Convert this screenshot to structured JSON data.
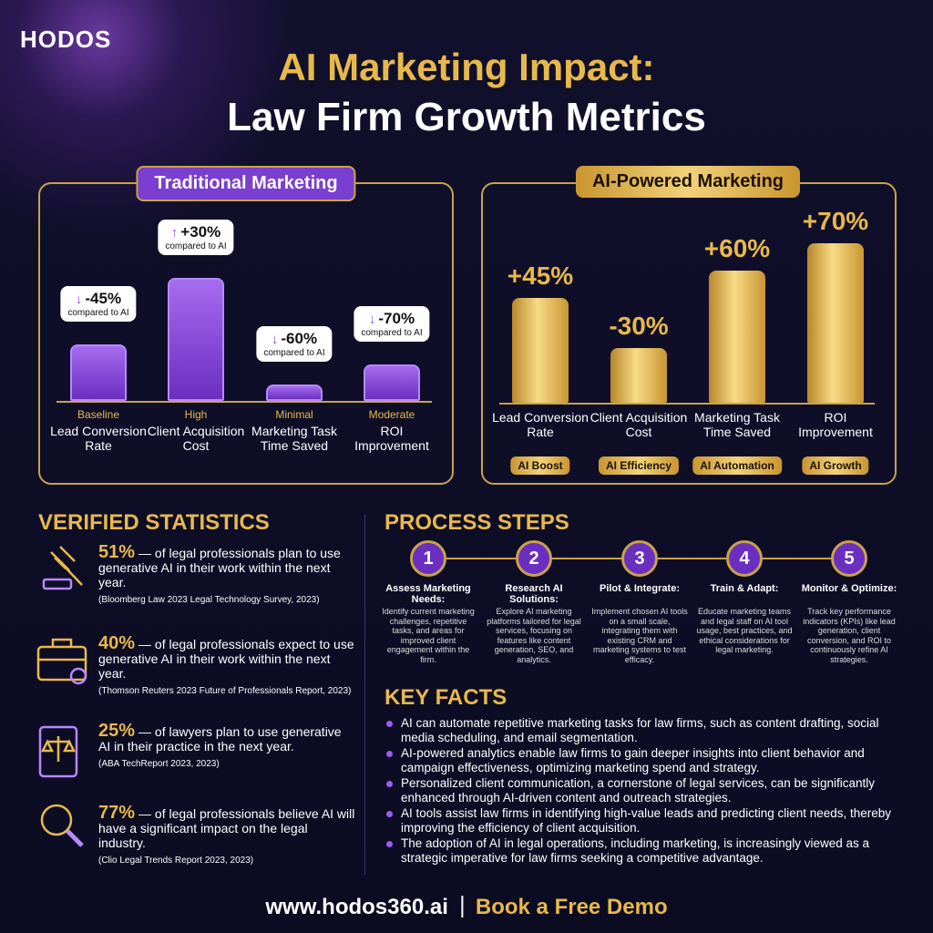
{
  "brand": "HODOS",
  "title": {
    "line1": "AI Marketing Impact:",
    "line2": "Law Firm Growth Metrics"
  },
  "traditional": {
    "heading": "Traditional Marketing",
    "items": [
      {
        "change": "-45%",
        "note": "compared to AI",
        "level": "Baseline",
        "label": "Lead Conversion Rate"
      },
      {
        "change": "+30%",
        "note": "compared to AI",
        "level": "High",
        "label": "Client Acquisition Cost"
      },
      {
        "change": "-60%",
        "note": "compared to AI",
        "level": "Minimal",
        "label": "Marketing Task Time Saved"
      },
      {
        "change": "-70%",
        "note": "compared to AI",
        "level": "Moderate",
        "label": "ROI Improvement"
      }
    ]
  },
  "ai": {
    "heading": "AI-Powered Marketing",
    "items": [
      {
        "change": "+45%",
        "label": "Lead Conversion Rate",
        "tag": "AI Boost"
      },
      {
        "change": "-30%",
        "label": "Client Acquisition Cost",
        "tag": "AI Efficiency"
      },
      {
        "change": "+60%",
        "label": "Marketing Task Time Saved",
        "tag": "AI Automation"
      },
      {
        "change": "+70%",
        "label": "ROI Improvement",
        "tag": "AI Growth"
      }
    ]
  },
  "verified": {
    "heading": "VERIFIED STATISTICS",
    "items": [
      {
        "stat": "51%",
        "text": "— of legal professionals plan to use generative AI in their work within the next year.",
        "source": "(Bloomberg Law 2023 Legal Technology Survey, 2023)"
      },
      {
        "stat": "40%",
        "text": "— of legal professionals expect to use generative AI in their work within the next year.",
        "source": "(Thomson Reuters 2023 Future of Professionals Report, 2023)"
      },
      {
        "stat": "25%",
        "text": "— of lawyers plan to use generative AI in their practice in the next year.",
        "source": "(ABA TechReport 2023, 2023)"
      },
      {
        "stat": "77%",
        "text": "— of legal professionals believe AI will have a significant impact on the legal industry.",
        "source": "(Clio Legal Trends Report 2023, 2023)"
      }
    ]
  },
  "process": {
    "heading": "PROCESS STEPS",
    "steps": [
      {
        "number": 1,
        "title": "Assess Marketing Needs:",
        "text": "Identify current marketing challenges, repetitive tasks, and areas for improved client engagement within the firm."
      },
      {
        "number": 2,
        "title": "Research AI Solutions:",
        "text": "Explore AI marketing platforms tailored for legal services, focusing on features like content generation, SEO, and analytics."
      },
      {
        "number": 3,
        "title": "Pilot & Integrate:",
        "text": "Implement chosen AI tools on a small scale, integrating them with existing CRM and marketing systems to test efficacy."
      },
      {
        "number": 4,
        "title": "Train & Adapt:",
        "text": "Educate marketing teams and legal staff on AI tool usage, best practices, and ethical considerations for legal marketing."
      },
      {
        "number": 5,
        "title": "Monitor & Optimize:",
        "text": "Track key performance indicators (KPIs) like lead generation, client conversion, and ROI to continuously refine AI strategies."
      }
    ]
  },
  "key_facts": {
    "heading": "KEY FACTS",
    "items": [
      "AI can automate repetitive marketing tasks for law firms, such as content drafting, social media scheduling, and email segmentation.",
      "AI-powered analytics enable law firms to gain deeper insights into client behavior and campaign effectiveness, optimizing marketing spend and strategy.",
      "Personalized client communication, a cornerstone of legal services, can be significantly enhanced through AI-driven content and outreach strategies.",
      "AI tools assist law firms in identifying high-value leads and predicting client needs, thereby improving the efficiency of client acquisition.",
      "The adoption of AI in legal operations, including marketing, is increasingly viewed as a strategic imperative for law firms seeking a competitive advantage."
    ]
  },
  "footer": {
    "url": "www.hodos360.ai",
    "cta": "Book a Free Demo"
  }
}
